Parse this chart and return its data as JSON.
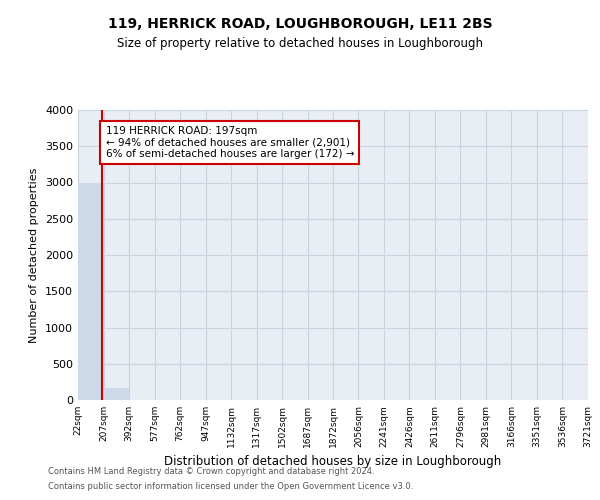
{
  "title": "119, HERRICK ROAD, LOUGHBOROUGH, LE11 2BS",
  "subtitle": "Size of property relative to detached houses in Loughborough",
  "xlabel": "Distribution of detached houses by size in Loughborough",
  "ylabel": "Number of detached properties",
  "property_size": 197,
  "annotation_line1": "119 HERRICK ROAD: 197sqm",
  "annotation_line2": "← 94% of detached houses are smaller (2,901)",
  "annotation_line3": "6% of semi-detached houses are larger (172) →",
  "bin_edges": [
    22,
    207,
    392,
    577,
    762,
    947,
    1132,
    1317,
    1502,
    1687,
    1872,
    2056,
    2241,
    2426,
    2611,
    2796,
    2981,
    3166,
    3351,
    3536,
    3721
  ],
  "bin_counts": [
    3000,
    170,
    0,
    0,
    0,
    0,
    0,
    0,
    0,
    0,
    0,
    0,
    0,
    0,
    0,
    0,
    0,
    0,
    0,
    0
  ],
  "bar_color": "#ccd9e8",
  "property_line_color": "#cc0000",
  "annotation_box_color": "#cc0000",
  "background_color": "#ffffff",
  "plot_bg_color": "#e8eef4",
  "grid_color": "#c8d4de",
  "ylim": [
    0,
    4000
  ],
  "yticks": [
    0,
    500,
    1000,
    1500,
    2000,
    2500,
    3000,
    3500,
    4000
  ],
  "footer_line1": "Contains HM Land Registry data © Crown copyright and database right 2024.",
  "footer_line2": "Contains public sector information licensed under the Open Government Licence v3.0."
}
